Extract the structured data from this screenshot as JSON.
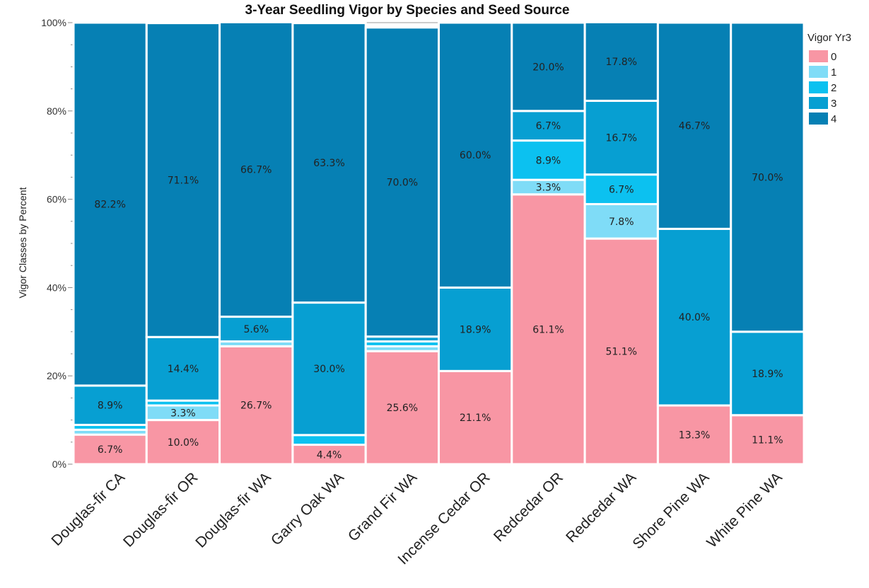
{
  "chart_data": {
    "type": "bar",
    "stacked": true,
    "title": "3-Year Seedling Vigor by Species and Seed Source",
    "ylabel": "Vigor Classes by Percent",
    "xlabel": "",
    "ylim": [
      0,
      100
    ],
    "yticks": [
      "0%",
      "20%",
      "40%",
      "60%",
      "80%",
      "100%"
    ],
    "legend_title": "Vigor Yr3",
    "legend_position": "top-right",
    "categories": [
      "Douglas-fir CA",
      "Douglas-fir OR",
      "Douglas-fir WA",
      "Garry Oak WA",
      "Grand Fir WA",
      "Incense Cedar OR",
      "Redcedar OR",
      "Redcedar WA",
      "Shore Pine WA",
      "White Pine WA"
    ],
    "bar_widths": [
      1,
      1,
      1,
      1,
      1,
      1,
      1,
      1,
      1,
      1
    ],
    "series": [
      {
        "name": "0",
        "color": "#f896a4",
        "values": [
          6.7,
          10.0,
          26.7,
          4.4,
          25.6,
          21.1,
          61.1,
          51.1,
          13.3,
          11.1
        ],
        "labels": [
          "6.7%",
          "10.0%",
          "26.7%",
          "4.4%",
          "25.6%",
          "21.1%",
          "61.1%",
          "51.1%",
          "13.3%",
          "11.1%"
        ]
      },
      {
        "name": "1",
        "color": "#7fdcf7",
        "values": [
          1.1,
          3.3,
          1.1,
          0,
          1.1,
          0,
          3.3,
          7.8,
          0,
          0
        ],
        "labels": [
          "",
          "3.3%",
          "",
          "",
          "",
          "",
          "3.3%",
          "7.8%",
          "",
          ""
        ]
      },
      {
        "name": "2",
        "color": "#0cc1f0",
        "values": [
          1.1,
          1.1,
          0,
          2.2,
          1.1,
          0,
          8.9,
          6.7,
          0,
          0
        ],
        "labels": [
          "",
          "",
          "",
          "",
          "",
          "",
          "8.9%",
          "6.7%",
          "",
          ""
        ]
      },
      {
        "name": "3",
        "color": "#079fd2",
        "values": [
          8.9,
          14.4,
          5.6,
          30.0,
          1.1,
          18.9,
          6.7,
          16.7,
          40.0,
          18.9
        ],
        "labels": [
          "8.9%",
          "14.4%",
          "5.6%",
          "30.0%",
          "",
          "18.9%",
          "6.7%",
          "16.7%",
          "40.0%",
          "18.9%"
        ]
      },
      {
        "name": "4",
        "color": "#0680b4",
        "values": [
          82.2,
          71.1,
          66.7,
          63.3,
          70.0,
          60.0,
          20.0,
          17.8,
          46.7,
          70.0
        ],
        "labels": [
          "82.2%",
          "71.1%",
          "66.7%",
          "63.3%",
          "70.0%",
          "60.0%",
          "20.0%",
          "17.8%",
          "46.7%",
          "70.0%"
        ]
      }
    ]
  }
}
